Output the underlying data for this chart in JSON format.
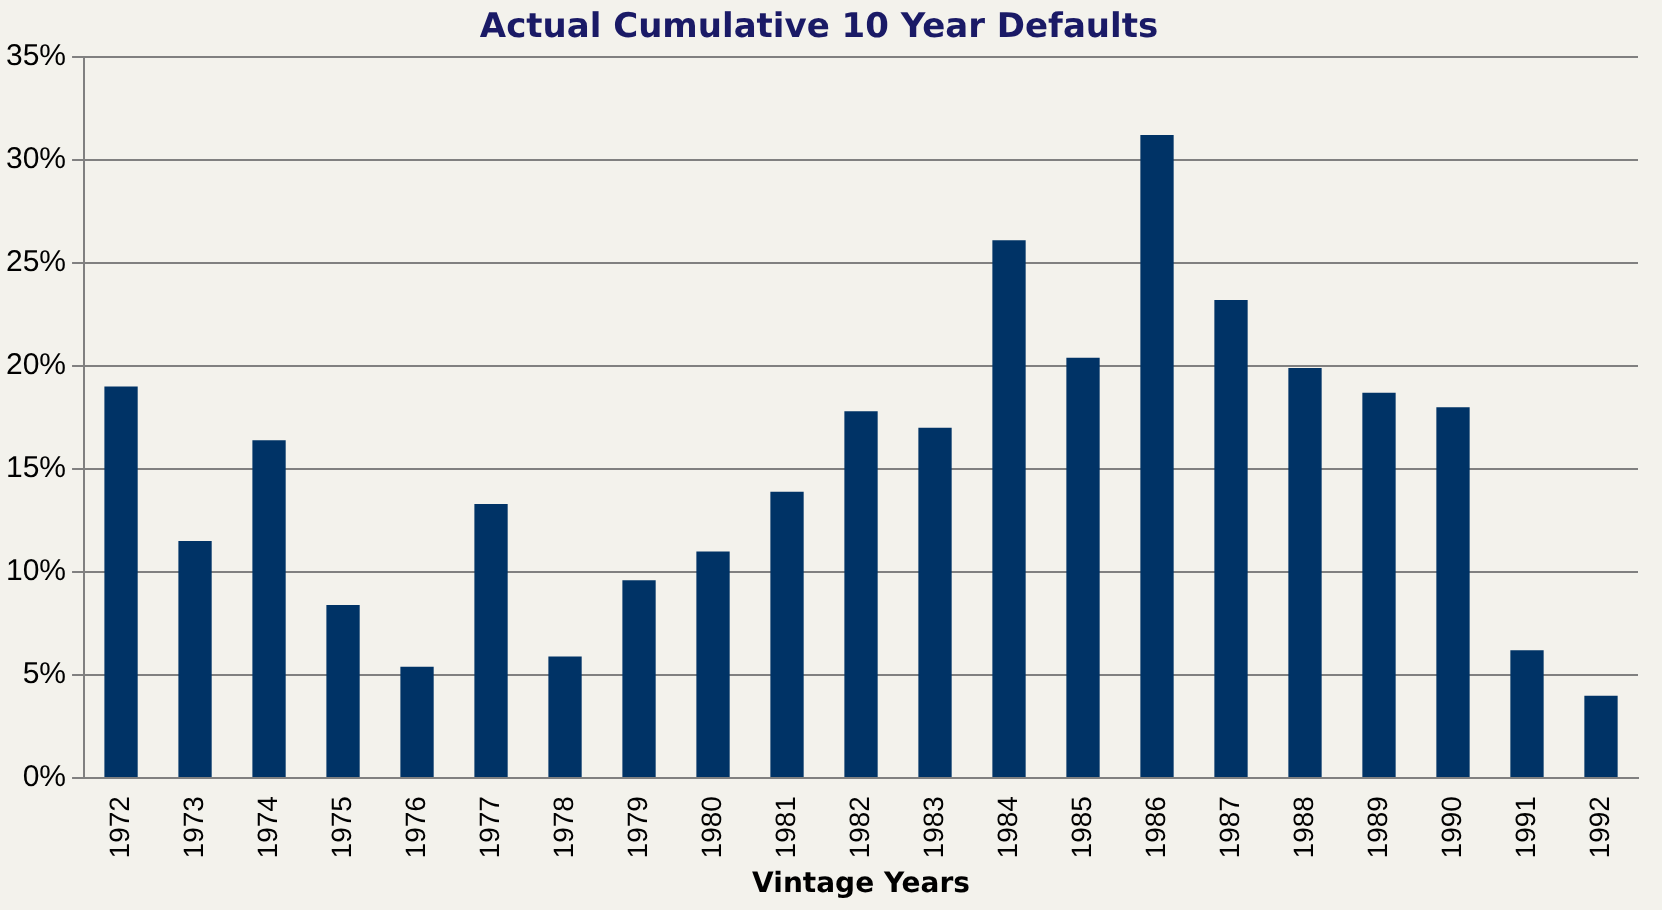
{
  "chart_data": {
    "type": "bar",
    "title": "Actual Cumulative 10 Year Defaults",
    "xlabel": "Vintage Years",
    "categories": [
      "1972",
      "1973",
      "1974",
      "1975",
      "1976",
      "1977",
      "1978",
      "1979",
      "1980",
      "1981",
      "1982",
      "1983",
      "1984",
      "1985",
      "1986",
      "1987",
      "1988",
      "1989",
      "1990",
      "1991",
      "1992"
    ],
    "values": [
      19.0,
      11.5,
      16.4,
      8.4,
      5.4,
      13.3,
      5.9,
      9.6,
      11.0,
      13.9,
      17.8,
      17.0,
      26.1,
      20.4,
      31.2,
      23.2,
      19.9,
      18.7,
      18.0,
      6.2,
      4.0
    ],
    "color": "#003366",
    "ylim": [
      0,
      35
    ],
    "yticks": [
      {
        "value": 0,
        "label": "0%"
      },
      {
        "value": 5,
        "label": "5%"
      },
      {
        "value": 10,
        "label": "10%"
      },
      {
        "value": 15,
        "label": "15%"
      },
      {
        "value": 20,
        "label": "20%"
      },
      {
        "value": 25,
        "label": "25%"
      },
      {
        "value": 30,
        "label": "30%"
      },
      {
        "value": 35,
        "label": "35%"
      }
    ],
    "grid": "y",
    "legend": false
  }
}
